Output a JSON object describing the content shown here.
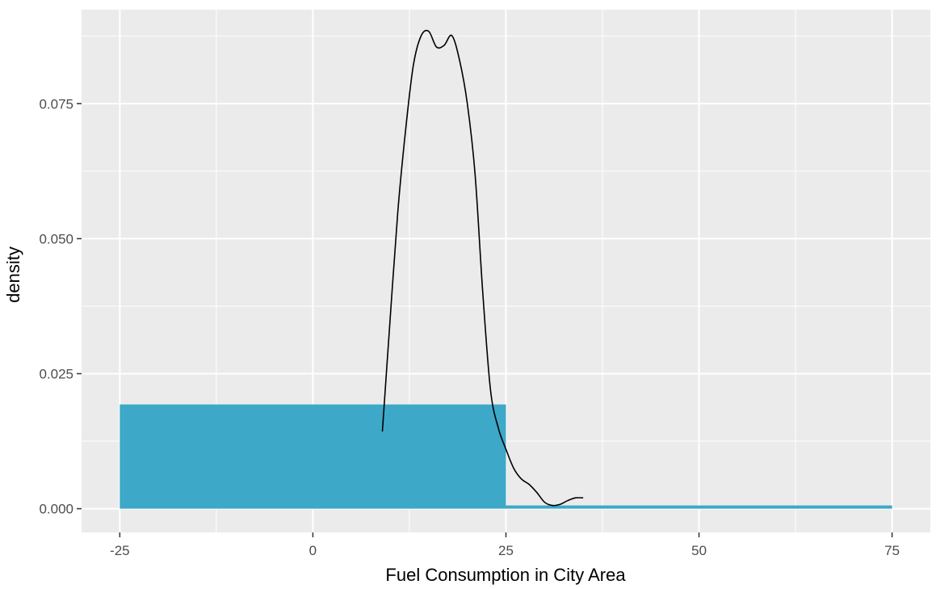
{
  "chart_data": {
    "type": "bar",
    "xlabel": "Fuel Consumption in City Area",
    "ylabel": "density",
    "xlim": [
      -29.95,
      79.95
    ],
    "ylim": [
      -0.0044,
      0.0924
    ],
    "x_ticks": [
      {
        "value": -25,
        "label": "-25"
      },
      {
        "value": 0,
        "label": "0"
      },
      {
        "value": 25,
        "label": "25"
      },
      {
        "value": 50,
        "label": "50"
      },
      {
        "value": 75,
        "label": "75"
      }
    ],
    "y_ticks": [
      {
        "value": 0,
        "label": "0.000"
      },
      {
        "value": 0.025,
        "label": "0.025"
      },
      {
        "value": 0.05,
        "label": "0.050"
      },
      {
        "value": 0.075,
        "label": "0.075"
      }
    ],
    "grid": true,
    "histogram": {
      "color": "#3ea8c8",
      "bins": [
        {
          "x0": -25,
          "x1": 25,
          "density": 0.0193
        },
        {
          "x0": 25,
          "x1": 75,
          "density": 0.0006
        }
      ]
    },
    "density_curve": {
      "color": "#000000",
      "points": [
        [
          9.0,
          0.0143
        ],
        [
          10.0,
          0.035
        ],
        [
          11.0,
          0.055
        ],
        [
          12.0,
          0.07
        ],
        [
          13.0,
          0.082
        ],
        [
          14.0,
          0.0875
        ],
        [
          15.0,
          0.0884
        ],
        [
          16.0,
          0.0855
        ],
        [
          17.0,
          0.0858
        ],
        [
          18.0,
          0.0876
        ],
        [
          19.0,
          0.083
        ],
        [
          20.0,
          0.075
        ],
        [
          21.0,
          0.062
        ],
        [
          22.0,
          0.04
        ],
        [
          23.0,
          0.022
        ],
        [
          24.0,
          0.015
        ],
        [
          25.0,
          0.011
        ],
        [
          26.0,
          0.0075
        ],
        [
          27.0,
          0.0055
        ],
        [
          28.0,
          0.0045
        ],
        [
          29.0,
          0.003
        ],
        [
          30.0,
          0.0012
        ],
        [
          31.0,
          0.0006
        ],
        [
          32.0,
          0.0008
        ],
        [
          33.0,
          0.0015
        ],
        [
          34.0,
          0.002
        ],
        [
          35.0,
          0.002
        ]
      ]
    }
  }
}
